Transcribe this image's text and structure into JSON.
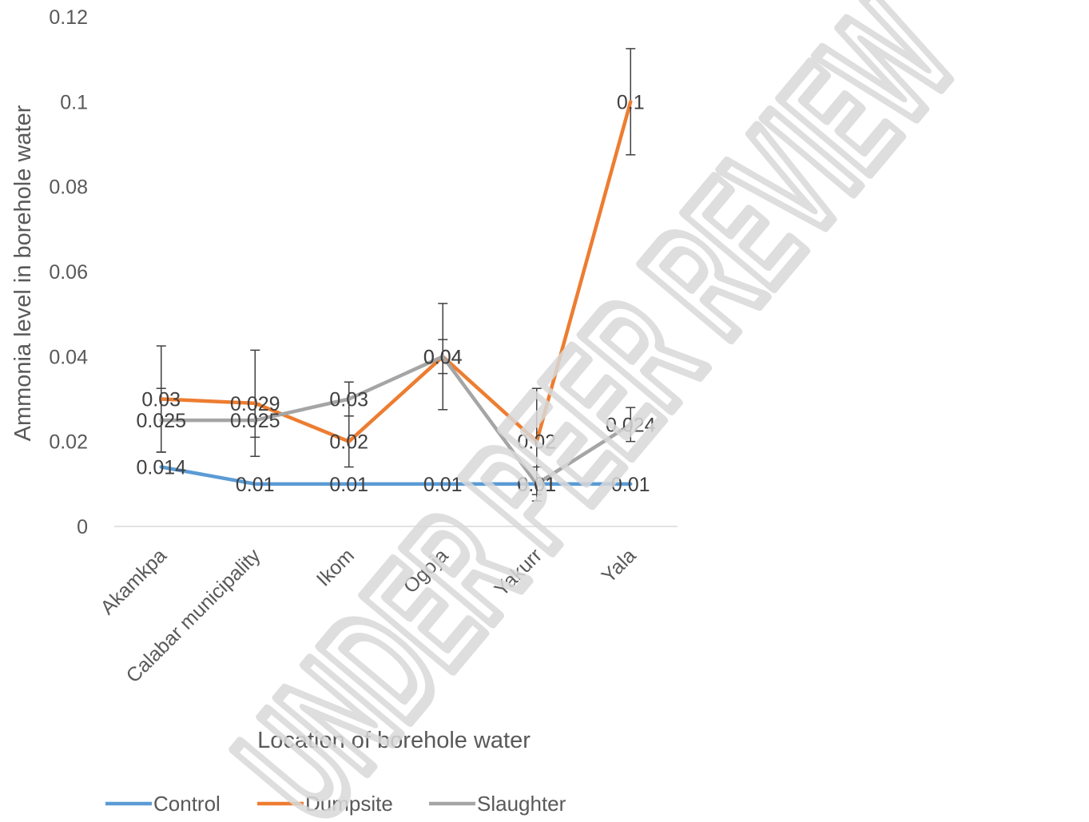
{
  "watermark": "UNDER PEER REVIEW",
  "chart_data": {
    "type": "line",
    "title": "",
    "xlabel": "Location of borehole water",
    "ylabel": "Ammonia level in borehole water",
    "ylim": [
      0,
      0.12
    ],
    "yticks": [
      "0",
      "0.02",
      "0.04",
      "0.06",
      "0.08",
      "0.1",
      "0.12"
    ],
    "ytick_values": [
      0,
      0.02,
      0.04,
      0.06,
      0.08,
      0.1,
      0.12
    ],
    "categories": [
      "Akamkpa",
      "Calabar municipality",
      "Ikom",
      "Ogoja",
      "Yakurr",
      "Yala"
    ],
    "grid": false,
    "legend_position": "bottom",
    "series": [
      {
        "name": "Control",
        "color": "#5b9bd5",
        "values": [
          0.014,
          0.01,
          0.01,
          0.01,
          0.01,
          0.01
        ],
        "labels": [
          "0.014",
          "0.01",
          "0.01",
          "0.01",
          "0.01",
          "0.01"
        ],
        "error": [
          0,
          0,
          0,
          0,
          0,
          0
        ]
      },
      {
        "name": "Dumpsite",
        "color": "#ed7d31",
        "values": [
          0.03,
          0.029,
          0.02,
          0.04,
          0.02,
          0.1
        ],
        "labels": [
          "0.03",
          "0.029",
          "0.02",
          "0.04",
          "0.02",
          "0.1"
        ],
        "error": [
          0.0125,
          0.0125,
          0.006,
          0.0125,
          0.0125,
          0.0125
        ]
      },
      {
        "name": "Slaughter",
        "color": "#a5a5a5",
        "values": [
          0.025,
          0.025,
          0.03,
          0.04,
          0.01,
          0.024
        ],
        "labels": [
          "0.025",
          "0.025",
          "0.03",
          "0.04",
          "0.01",
          "0.024"
        ],
        "error": [
          0.0075,
          0.004,
          0.004,
          0.004,
          0.004,
          0.004
        ]
      }
    ]
  }
}
